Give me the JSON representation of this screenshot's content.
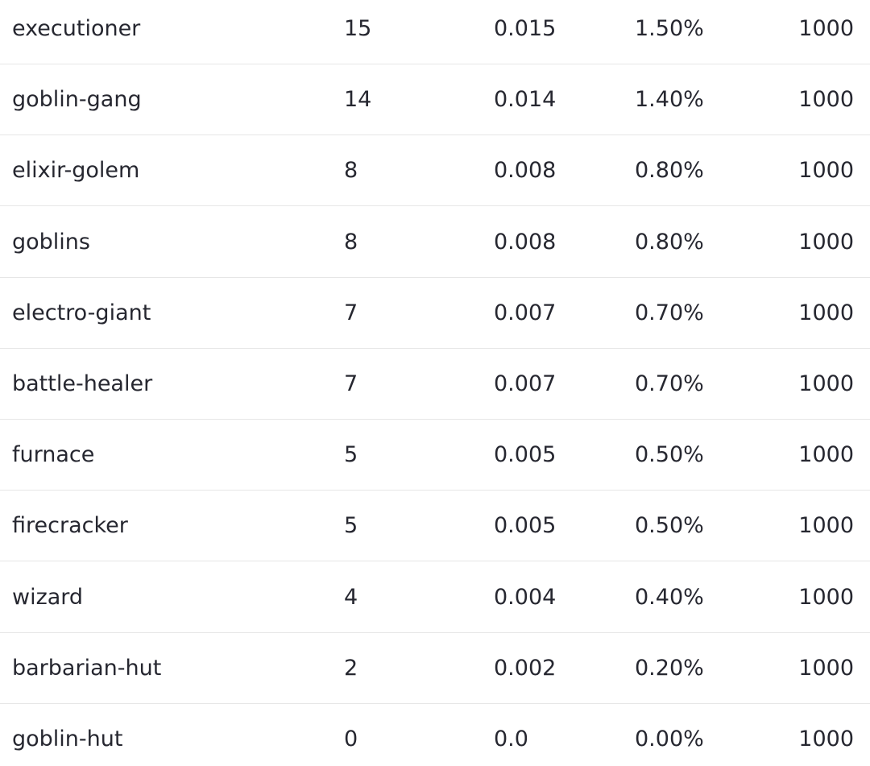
{
  "table": {
    "rows": [
      [
        "executioner",
        "15",
        "0.015",
        "1.50%",
        "1000"
      ],
      [
        "goblin-gang",
        "14",
        "0.014",
        "1.40%",
        "1000"
      ],
      [
        "elixir-golem",
        "8",
        "0.008",
        "0.80%",
        "1000"
      ],
      [
        "goblins",
        "8",
        "0.008",
        "0.80%",
        "1000"
      ],
      [
        "electro-giant",
        "7",
        "0.007",
        "0.70%",
        "1000"
      ],
      [
        "battle-healer",
        "7",
        "0.007",
        "0.70%",
        "1000"
      ],
      [
        "furnace",
        "5",
        "0.005",
        "0.50%",
        "1000"
      ],
      [
        "firecracker",
        "5",
        "0.005",
        "0.50%",
        "1000"
      ],
      [
        "wizard",
        "4",
        "0.004",
        "0.40%",
        "1000"
      ],
      [
        "barbarian-hut",
        "2",
        "0.002",
        "0.20%",
        "1000"
      ],
      [
        "goblin-hut",
        "0",
        "0.0",
        "0.00%",
        "1000"
      ]
    ]
  }
}
